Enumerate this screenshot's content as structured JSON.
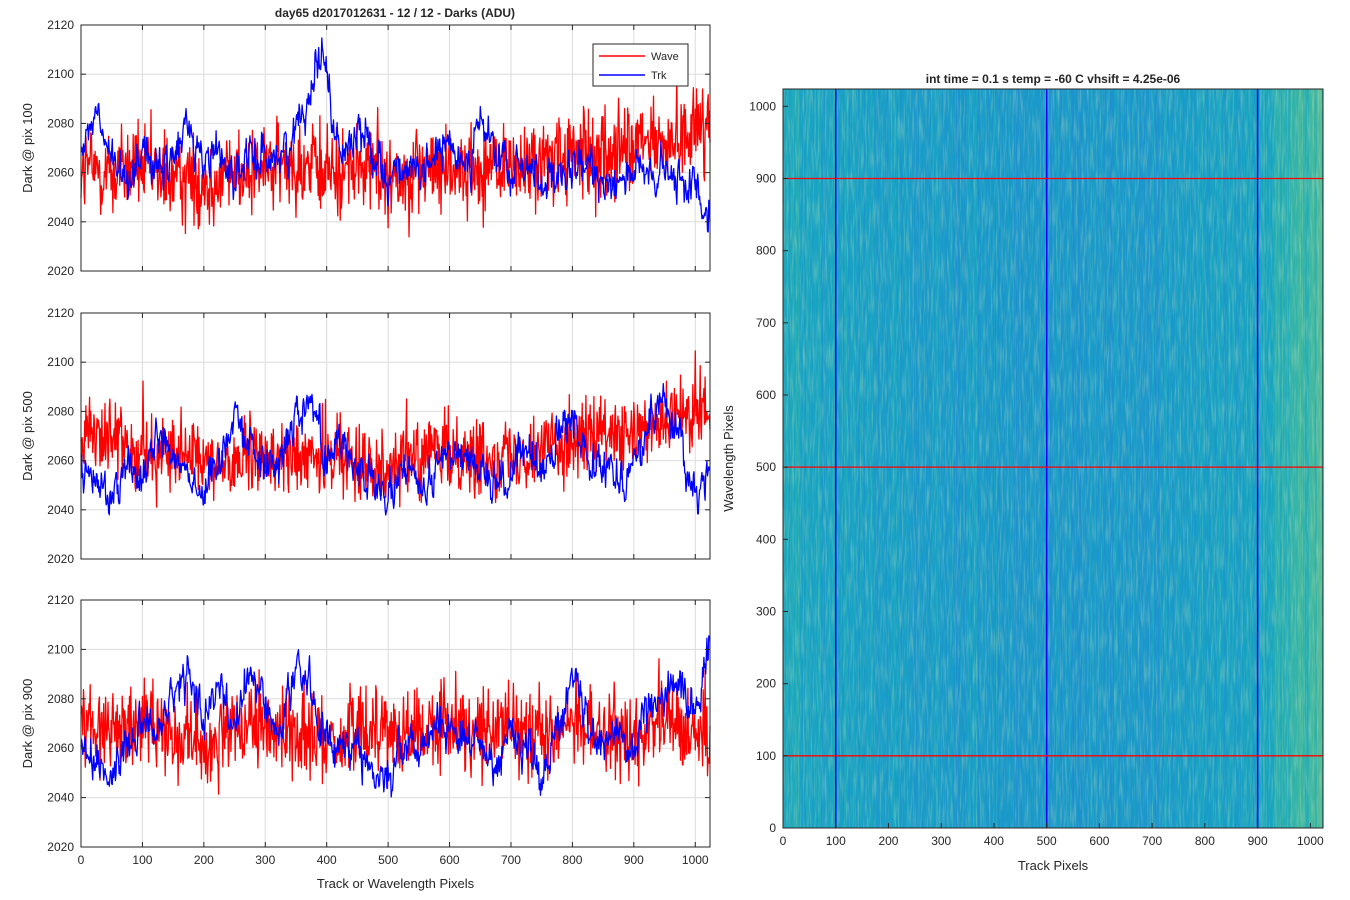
{
  "figure": {
    "title": "day65 d2017012631 - 12 / 12 - Darks (ADU)"
  },
  "chart_data": [
    {
      "type": "line",
      "panel": "left-top",
      "ylabel": "Dark @ pix 100",
      "xlabel": "",
      "xlim": [
        0,
        1024
      ],
      "ylim": [
        2020,
        2120
      ],
      "xticks": [
        0,
        100,
        200,
        300,
        400,
        500,
        600,
        700,
        800,
        900,
        1000
      ],
      "yticks": [
        2020,
        2040,
        2060,
        2080,
        2100,
        2120
      ],
      "grid": true,
      "legend": {
        "placement": "top-right"
      },
      "series": [
        {
          "name": "Wave",
          "color": "#ff0000",
          "x": [
            0,
            50,
            100,
            150,
            200,
            250,
            300,
            350,
            400,
            450,
            500,
            550,
            600,
            650,
            700,
            750,
            800,
            850,
            900,
            950,
            1000,
            1024
          ],
          "values": [
            2062,
            2060,
            2062,
            2058,
            2056,
            2060,
            2062,
            2063,
            2060,
            2062,
            2058,
            2060,
            2062,
            2060,
            2062,
            2064,
            2066,
            2068,
            2070,
            2072,
            2078,
            2082
          ]
        },
        {
          "name": "Trk",
          "color": "#0000ff",
          "x": [
            0,
            25,
            50,
            75,
            100,
            125,
            150,
            175,
            200,
            225,
            250,
            275,
            300,
            325,
            350,
            365,
            380,
            390,
            395,
            400,
            410,
            425,
            450,
            475,
            500,
            525,
            550,
            575,
            600,
            625,
            650,
            675,
            700,
            725,
            750,
            775,
            800,
            825,
            850,
            875,
            900,
            925,
            950,
            975,
            1000,
            1024
          ],
          "values": [
            2068,
            2084,
            2064,
            2056,
            2072,
            2058,
            2066,
            2080,
            2064,
            2070,
            2058,
            2064,
            2068,
            2066,
            2076,
            2090,
            2100,
            2110,
            2114,
            2102,
            2080,
            2066,
            2078,
            2070,
            2058,
            2064,
            2054,
            2068,
            2070,
            2064,
            2080,
            2068,
            2058,
            2064,
            2058,
            2054,
            2060,
            2062,
            2058,
            2058,
            2062,
            2056,
            2060,
            2054,
            2056,
            2044
          ]
        }
      ]
    },
    {
      "type": "line",
      "panel": "left-middle",
      "ylabel": "Dark @ pix 500",
      "xlabel": "",
      "xlim": [
        0,
        1024
      ],
      "ylim": [
        2020,
        2120
      ],
      "xticks": [
        0,
        100,
        200,
        300,
        400,
        500,
        600,
        700,
        800,
        900,
        1000
      ],
      "yticks": [
        2020,
        2040,
        2060,
        2080,
        2100,
        2120
      ],
      "grid": true,
      "series": [
        {
          "name": "Wave",
          "color": "#ff0000",
          "x": [
            0,
            50,
            100,
            150,
            200,
            250,
            300,
            350,
            400,
            450,
            500,
            550,
            600,
            650,
            700,
            750,
            800,
            850,
            900,
            950,
            1000,
            1024
          ],
          "values": [
            2072,
            2068,
            2064,
            2062,
            2058,
            2060,
            2062,
            2060,
            2062,
            2060,
            2058,
            2062,
            2064,
            2060,
            2062,
            2066,
            2068,
            2070,
            2068,
            2076,
            2080,
            2078
          ]
        },
        {
          "name": "Trk",
          "color": "#0000ff",
          "x": [
            0,
            25,
            50,
            75,
            100,
            125,
            150,
            175,
            200,
            225,
            250,
            275,
            300,
            325,
            350,
            375,
            400,
            425,
            450,
            475,
            500,
            525,
            550,
            575,
            600,
            625,
            650,
            675,
            700,
            725,
            750,
            775,
            800,
            825,
            850,
            875,
            900,
            925,
            950,
            975,
            1000,
            1024
          ],
          "values": [
            2056,
            2050,
            2048,
            2060,
            2052,
            2072,
            2064,
            2056,
            2046,
            2060,
            2082,
            2066,
            2058,
            2062,
            2080,
            2084,
            2062,
            2070,
            2056,
            2050,
            2042,
            2060,
            2048,
            2052,
            2066,
            2062,
            2060,
            2050,
            2052,
            2066,
            2054,
            2068,
            2076,
            2064,
            2060,
            2054,
            2058,
            2074,
            2086,
            2066,
            2046,
            2054
          ]
        }
      ]
    },
    {
      "type": "line",
      "panel": "left-bottom",
      "ylabel": "Dark @ pix 900",
      "xlabel": "Track or Wavelength Pixels",
      "xlim": [
        0,
        1024
      ],
      "ylim": [
        2020,
        2120
      ],
      "xticks": [
        0,
        100,
        200,
        300,
        400,
        500,
        600,
        700,
        800,
        900,
        1000
      ],
      "yticks": [
        2020,
        2040,
        2060,
        2080,
        2100,
        2120
      ],
      "grid": true,
      "series": [
        {
          "name": "Wave",
          "color": "#ff0000",
          "x": [
            0,
            50,
            100,
            150,
            200,
            250,
            300,
            350,
            400,
            450,
            500,
            550,
            600,
            650,
            700,
            750,
            800,
            850,
            900,
            950,
            1000,
            1024
          ],
          "values": [
            2072,
            2068,
            2070,
            2066,
            2062,
            2066,
            2068,
            2066,
            2064,
            2066,
            2068,
            2066,
            2070,
            2066,
            2068,
            2066,
            2070,
            2066,
            2064,
            2068,
            2066,
            2070
          ]
        },
        {
          "name": "Trk",
          "color": "#0000ff",
          "x": [
            0,
            25,
            50,
            75,
            100,
            125,
            150,
            175,
            200,
            225,
            250,
            275,
            300,
            325,
            350,
            375,
            400,
            425,
            450,
            475,
            500,
            525,
            550,
            575,
            600,
            625,
            650,
            675,
            700,
            725,
            750,
            775,
            800,
            825,
            850,
            875,
            900,
            925,
            950,
            975,
            1000,
            1024
          ],
          "values": [
            2064,
            2052,
            2050,
            2060,
            2074,
            2066,
            2080,
            2090,
            2072,
            2086,
            2070,
            2088,
            2078,
            2068,
            2094,
            2084,
            2058,
            2066,
            2060,
            2050,
            2048,
            2064,
            2058,
            2072,
            2068,
            2062,
            2064,
            2054,
            2066,
            2062,
            2050,
            2066,
            2090,
            2070,
            2066,
            2064,
            2060,
            2076,
            2084,
            2086,
            2074,
            2104
          ]
        }
      ]
    },
    {
      "type": "heatmap",
      "panel": "right",
      "title": "int time = 0.1 s   temp = -60 C   vhsift = 4.25e-06",
      "xlabel": "Track Pixels",
      "ylabel": "Wavelength Pixels",
      "xlim": [
        0,
        1024
      ],
      "ylim": [
        0,
        1024
      ],
      "xticks": [
        0,
        100,
        200,
        300,
        400,
        500,
        600,
        700,
        800,
        900,
        1000
      ],
      "yticks": [
        0,
        100,
        200,
        300,
        400,
        500,
        600,
        700,
        800,
        900,
        1000
      ],
      "colormap": [
        "#1f78d4",
        "#1e8fd0",
        "#17a5c2",
        "#3cb7a3",
        "#8fc579"
      ],
      "column_trend_x": [
        0,
        100,
        200,
        300,
        400,
        500,
        600,
        700,
        800,
        900,
        950,
        1000,
        1024
      ],
      "column_trend": [
        0.55,
        0.45,
        0.42,
        0.4,
        0.35,
        0.34,
        0.36,
        0.38,
        0.42,
        0.5,
        0.62,
        0.72,
        0.75
      ],
      "vertical_markers": {
        "x": [
          100,
          500,
          900
        ],
        "color": "#0000ff"
      },
      "horizontal_markers": {
        "y": [
          100,
          500,
          900
        ],
        "color": "#ff0000"
      }
    }
  ]
}
